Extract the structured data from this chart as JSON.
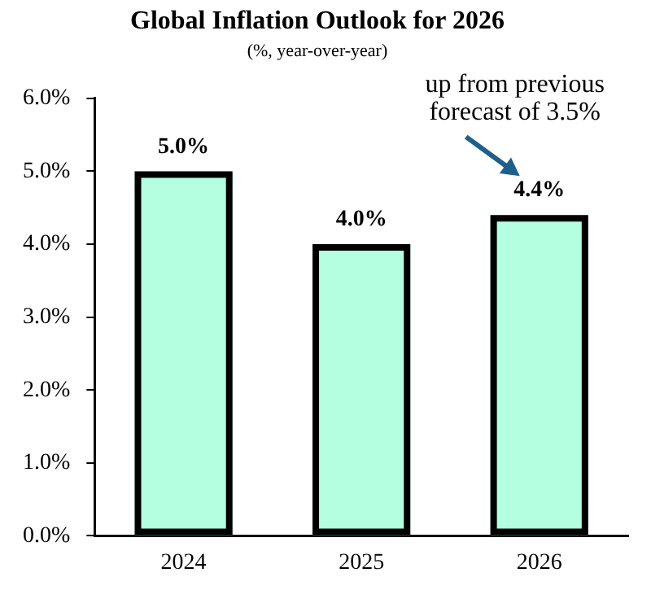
{
  "chart_data": {
    "type": "bar",
    "title": "Global Inflation Outlook for 2026",
    "subtitle": "(%, year-over-year)",
    "categories": [
      "2024",
      "2025",
      "2026"
    ],
    "values": [
      5.0,
      4.0,
      4.4
    ],
    "value_labels": [
      "5.0%",
      "4.0%",
      "4.4%"
    ],
    "color": "#b3ffe0",
    "ylim": [
      0,
      6
    ],
    "yticks": [
      {
        "value": 0,
        "label": "0.0%"
      },
      {
        "value": 1,
        "label": "1.0%"
      },
      {
        "value": 2,
        "label": "2.0%"
      },
      {
        "value": 3,
        "label": "3.0%"
      },
      {
        "value": 4,
        "label": "4.0%"
      },
      {
        "value": 5,
        "label": "5.0%"
      },
      {
        "value": 6,
        "label": "6.0%"
      }
    ],
    "grid": false,
    "legend": false,
    "annotations": [
      "up from previous forecast of 3.5%"
    ]
  }
}
